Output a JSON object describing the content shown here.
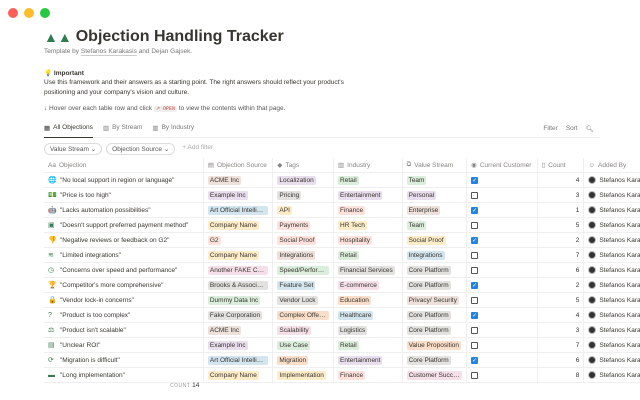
{
  "window": {
    "controls": [
      "#ff5f57",
      "#febc2e",
      "#28c840"
    ]
  },
  "page": {
    "title": "Objection Handling Tracker",
    "template_by": "Template by",
    "author1": "Stefanos Karakasis",
    "and": "and",
    "author2": "Dejan Gajsek.",
    "important": "Important",
    "paragraph": "Use this framework and their answers as a starting point. The right answers should reflect your product's positioning and your company's vision and culture.",
    "hint_pre": "↓ Hover over each table row and click",
    "hint_code": "↗ OPEN",
    "hint_post": "to view the contents within that page."
  },
  "tabs": [
    {
      "label": "All Objections"
    },
    {
      "label": "By Stream"
    },
    {
      "label": "By Industry"
    }
  ],
  "tools": {
    "filter": "Filter",
    "sort": "Sort"
  },
  "filters": {
    "value_stream": "Value Stream ⌄",
    "objection_source": "Objection Source ⌄",
    "add": "+ Add filter"
  },
  "columns": [
    "Objection",
    "Objection Source",
    "Tags",
    "Industry",
    "Value Stream",
    "Current Customer",
    "Count",
    "Added By"
  ],
  "tag_colors": {
    "gray": "#e3e2e0",
    "brown": "#eee0da",
    "orange": "#fadec9",
    "yellow": "#fdecc8",
    "green": "#dbeddb",
    "blue": "#d3e5ef",
    "purple": "#e8deee",
    "pink": "#f5e0e9",
    "red": "#ffe2dd"
  },
  "rows": [
    {
      "icon": "🌐",
      "objection": "\"No local support in region or language\"",
      "source": "ACME Inc",
      "source_c": "brown",
      "tag": "Localization",
      "tag_c": "purple",
      "industry": "Retail",
      "ind_c": "green",
      "stream": "Team",
      "str_c": "green",
      "customer": true,
      "count": "4",
      "added": "Stefanos Karakasis"
    },
    {
      "icon": "💵",
      "objection": "\"Price is too high\"",
      "source": "Example Inc",
      "source_c": "purple",
      "tag": "Pricing",
      "tag_c": "gray",
      "industry": "Entertainment",
      "ind_c": "purple",
      "stream": "Personal",
      "str_c": "purple",
      "customer": false,
      "count": "3",
      "added": "Stefanos Karakasis"
    },
    {
      "icon": "🤖",
      "objection": "\"Lacks automation possibilities\"",
      "source": "Art Official Intelligence",
      "source_c": "blue",
      "tag": "API",
      "tag_c": "yellow",
      "industry": "Finance",
      "ind_c": "red",
      "stream": "Enterprise",
      "str_c": "brown",
      "customer": true,
      "count": "1",
      "added": "Stefanos Karakasis"
    },
    {
      "icon": "▣",
      "objection": "\"Doesn't support preferred payment method\"",
      "source": "Company Name",
      "source_c": "yellow",
      "tag": "Payments",
      "tag_c": "red",
      "industry": "HR Tech",
      "ind_c": "yellow",
      "stream": "Team",
      "str_c": "green",
      "customer": false,
      "count": "5",
      "added": "Stefanos Karakasis"
    },
    {
      "icon": "👎",
      "objection": "\"Negative reviews or feedback on G2\"",
      "source": "G2",
      "source_c": "red",
      "tag": "Social Proof",
      "tag_c": "red",
      "industry": "Hospitality",
      "ind_c": "red",
      "stream": "Social Proof",
      "str_c": "yellow",
      "customer": true,
      "count": "2",
      "added": "Stefanos Karakasis"
    },
    {
      "icon": "≋",
      "objection": "\"Limited integrations\"",
      "source": "Company Name",
      "source_c": "yellow",
      "tag": "Integrations",
      "tag_c": "brown",
      "industry": "Retail",
      "ind_c": "green",
      "stream": "Integrations",
      "str_c": "blue",
      "customer": false,
      "count": "7",
      "added": "Stefanos Karakasis"
    },
    {
      "icon": "◷",
      "objection": "\"Concerns over speed and performance\"",
      "source": "Another FAKE Company",
      "source_c": "pink",
      "tag": "Speed/Performance",
      "tag_c": "green",
      "industry": "Financial Services",
      "ind_c": "gray",
      "stream": "Core Platform",
      "str_c": "gray",
      "customer": false,
      "count": "6",
      "added": "Stefanos Karakasis"
    },
    {
      "icon": "🏆",
      "objection": "\"Competitor's more comprehensive\"",
      "source": "Brooks & Associates",
      "source_c": "gray",
      "tag": "Feature Set",
      "tag_c": "blue",
      "industry": "E-commerce",
      "ind_c": "pink",
      "stream": "Core Platform",
      "str_c": "gray",
      "customer": true,
      "count": "2",
      "added": "Stefanos Karakasis"
    },
    {
      "icon": "🔒",
      "objection": "\"Vendor lock-in concerns\"",
      "source": "Dummy Data Inc",
      "source_c": "green",
      "tag": "Vendor Lock",
      "tag_c": "gray",
      "industry": "Education",
      "ind_c": "orange",
      "stream": "Privacy/ Security",
      "str_c": "brown",
      "customer": false,
      "count": "5",
      "added": "Stefanos Karakasis"
    },
    {
      "icon": "?",
      "objection": "\"Product is too complex\"",
      "source": "Fake Corporation",
      "source_c": "gray",
      "tag": "Complex Offering",
      "tag_c": "orange",
      "industry": "Healthcare",
      "ind_c": "blue",
      "stream": "Core Platform",
      "str_c": "gray",
      "customer": true,
      "count": "4",
      "added": "Stefanos Karakasis"
    },
    {
      "icon": "⚖",
      "objection": "\"Product isn't scalable\"",
      "source": "ACME Inc",
      "source_c": "brown",
      "tag": "Scalability",
      "tag_c": "pink",
      "industry": "Logistics",
      "ind_c": "gray",
      "stream": "Core Platform",
      "str_c": "gray",
      "customer": false,
      "count": "3",
      "added": "Stefanos Karakasis"
    },
    {
      "icon": "▤",
      "objection": "\"Unclear ROI\"",
      "source": "Example Inc",
      "source_c": "purple",
      "tag": "Use Case",
      "tag_c": "green",
      "industry": "Retail",
      "ind_c": "green",
      "stream": "Value Proposition",
      "str_c": "orange",
      "customer": false,
      "count": "7",
      "added": "Stefanos Karakasis"
    },
    {
      "icon": "⟳",
      "objection": "\"Migration is difficult\"",
      "source": "Art Official Intelligence",
      "source_c": "blue",
      "tag": "Migration",
      "tag_c": "orange",
      "industry": "Entertainment",
      "ind_c": "purple",
      "stream": "Core Platform",
      "str_c": "gray",
      "customer": true,
      "count": "6",
      "added": "Stefanos Karakasis"
    },
    {
      "icon": "▬",
      "objection": "\"Long implementation\"",
      "source": "Company Name",
      "source_c": "yellow",
      "tag": "Implementation",
      "tag_c": "yellow",
      "industry": "Finance",
      "ind_c": "red",
      "stream": "Customer Success",
      "str_c": "pink",
      "customer": false,
      "count": "8",
      "added": "Stefanos Karakasis"
    }
  ],
  "footer": {
    "count_label": "COUNT",
    "count": "14"
  }
}
